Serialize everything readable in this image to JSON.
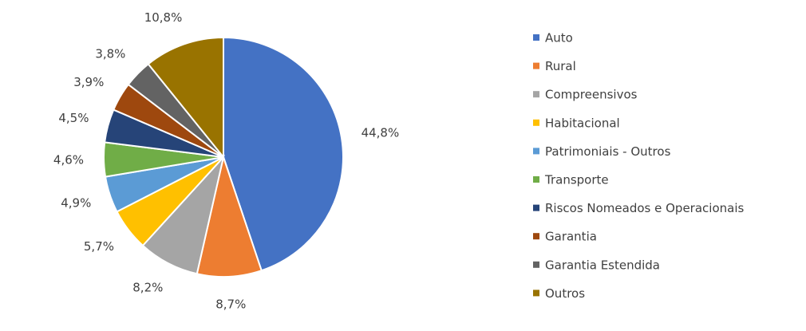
{
  "chart_data": {
    "type": "pie",
    "categories": [
      "Auto",
      "Rural",
      "Compreensivos",
      "Habitacional",
      "Patrimoniais - Outros",
      "Transporte",
      "Riscos Nomeados e Operacionais",
      "Garantia",
      "Garantia Estendida",
      "Outros"
    ],
    "values": [
      44.8,
      8.7,
      8.2,
      5.7,
      4.9,
      4.6,
      4.5,
      3.9,
      3.8,
      10.8
    ],
    "value_labels": [
      "44,8%",
      "8,7%",
      "8,2%",
      "5,7%",
      "4,9%",
      "4,6%",
      "4,5%",
      "3,9%",
      "3,8%",
      "10,8%"
    ],
    "colors": [
      "#4472c4",
      "#ed7d31",
      "#a5a5a5",
      "#ffc000",
      "#5b9bd5",
      "#70ad47",
      "#264478",
      "#9e480e",
      "#636363",
      "#997300"
    ],
    "legend": "right"
  }
}
